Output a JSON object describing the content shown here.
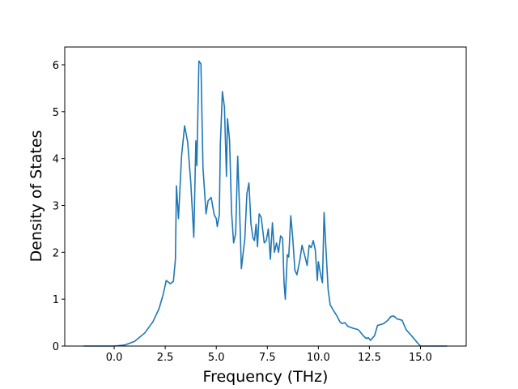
{
  "chart_data": {
    "type": "line",
    "xlabel": "Frequency (THz)",
    "ylabel": "Density of States",
    "color": "#1f77b4",
    "x": [
      -1.5,
      0,
      0.5,
      1.0,
      1.5,
      1.9,
      2.2,
      2.4,
      2.55,
      2.75,
      2.9,
      3.0,
      3.05,
      3.15,
      3.3,
      3.45,
      3.6,
      3.75,
      3.9,
      4.0,
      4.05,
      4.15,
      4.25,
      4.35,
      4.5,
      4.6,
      4.75,
      4.9,
      5.0,
      5.05,
      5.15,
      5.2,
      5.3,
      5.4,
      5.5,
      5.55,
      5.65,
      5.75,
      5.85,
      5.95,
      6.05,
      6.15,
      6.23,
      6.4,
      6.5,
      6.6,
      6.7,
      6.8,
      6.87,
      6.95,
      7.02,
      7.1,
      7.2,
      7.35,
      7.45,
      7.55,
      7.65,
      7.75,
      7.85,
      7.95,
      8.05,
      8.15,
      8.25,
      8.32,
      8.38,
      8.48,
      8.55,
      8.65,
      8.75,
      8.85,
      8.95,
      9.1,
      9.2,
      9.35,
      9.45,
      9.55,
      9.65,
      9.75,
      9.85,
      9.95,
      10.0,
      10.1,
      10.2,
      10.28,
      10.38,
      10.48,
      10.58,
      10.75,
      10.9,
      11.05,
      11.15,
      11.3,
      11.45,
      11.7,
      11.95,
      12.05,
      12.2,
      12.35,
      12.45,
      12.55,
      12.75,
      12.9,
      13.2,
      13.4,
      13.55,
      13.7,
      13.85,
      14.1,
      14.3,
      14.6,
      14.85,
      15.0,
      16.3
    ],
    "values": [
      0,
      0,
      0.02,
      0.1,
      0.28,
      0.52,
      0.8,
      1.1,
      1.4,
      1.33,
      1.38,
      1.85,
      3.42,
      2.72,
      4.05,
      4.7,
      4.35,
      3.5,
      2.32,
      4.38,
      3.85,
      6.08,
      6.02,
      3.8,
      2.82,
      3.1,
      3.17,
      2.8,
      2.72,
      2.55,
      2.8,
      4.3,
      5.43,
      5.1,
      3.62,
      4.85,
      4.4,
      2.85,
      2.2,
      2.4,
      4.05,
      2.8,
      1.65,
      2.3,
      3.25,
      3.48,
      2.6,
      2.3,
      2.25,
      2.6,
      2.12,
      2.82,
      2.75,
      2.2,
      2.25,
      2.5,
      1.85,
      2.63,
      2.0,
      2.2,
      2.0,
      2.35,
      2.3,
      1.35,
      1.0,
      1.95,
      1.9,
      2.78,
      2.28,
      1.62,
      1.52,
      1.85,
      2.15,
      1.9,
      1.72,
      2.15,
      2.1,
      2.25,
      2.05,
      1.4,
      1.8,
      1.55,
      1.35,
      2.85,
      2.0,
      1.2,
      0.88,
      0.75,
      0.65,
      0.52,
      0.48,
      0.5,
      0.42,
      0.38,
      0.35,
      0.3,
      0.22,
      0.16,
      0.18,
      0.12,
      0.22,
      0.44,
      0.48,
      0.55,
      0.63,
      0.64,
      0.58,
      0.55,
      0.35,
      0.2,
      0.07,
      0,
      0
    ],
    "xlim": [
      -2.42,
      17.24
    ],
    "ylim": [
      0,
      6.38
    ],
    "xticks": [
      {
        "value": 0,
        "label": "0.0"
      },
      2.5,
      {
        "value": 5,
        "label": "5.0"
      },
      7.5,
      {
        "value": 10,
        "label": "10.0"
      },
      12.5,
      {
        "value": 15,
        "label": "15.0"
      }
    ],
    "yticks": [
      0,
      1,
      2,
      3,
      4,
      5,
      6
    ]
  }
}
